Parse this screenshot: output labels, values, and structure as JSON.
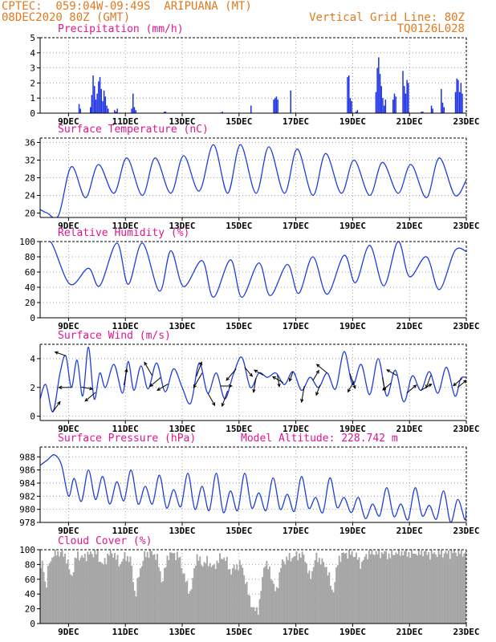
{
  "header": {
    "line1": "CPTEC:  059:04W-09:49S  ARIPUANA (MT)",
    "line2_left": "08DEC2020 80Z (GMT)",
    "line2_right": "Vertical Grid Line: 80Z",
    "line3_right": "TQ0126L028"
  },
  "colors": {
    "header": "#e07a1f",
    "title": "#e0168c",
    "series": "#1f3fd9",
    "bars": "#1a2fe6",
    "cloud": "#a6a6a6",
    "wind_arrow": "#000000"
  },
  "chart_data": [
    {
      "type": "bar",
      "title": "Precipitation (mm/h)",
      "x_ticks": [
        "9DEC",
        "11DEC",
        "13DEC",
        "15DEC",
        "17DEC",
        "19DEC",
        "21DEC",
        "23DEC"
      ],
      "ylim": [
        0,
        5
      ],
      "y_ticks": [
        0,
        1,
        2,
        3,
        4,
        5
      ],
      "events": [
        {
          "day": 9.35,
          "values": [
            0.6,
            0.3
          ]
        },
        {
          "day": 9.75,
          "values": [
            0.4,
            1.2,
            2.5,
            1.8,
            0.9,
            1.3,
            2.1,
            2.4,
            1.6,
            0.8,
            1.5,
            1.1,
            0.5,
            0.3
          ]
        },
        {
          "day": 10.6,
          "values": [
            0.2,
            0.1,
            0.3
          ]
        },
        {
          "day": 11.2,
          "values": [
            0.3,
            1.3,
            0.4,
            0.2
          ]
        },
        {
          "day": 12.35,
          "values": [
            0.1,
            0.1
          ]
        },
        {
          "day": 14.35,
          "values": [
            0.05,
            0.1
          ]
        },
        {
          "day": 15.4,
          "values": [
            0.5
          ]
        },
        {
          "day": 16.2,
          "values": [
            0.9,
            1.0,
            1.1,
            0.9
          ]
        },
        {
          "day": 16.8,
          "values": [
            1.5
          ]
        },
        {
          "day": 18.8,
          "values": [
            2.4,
            2.5,
            1.0,
            0.8
          ]
        },
        {
          "day": 19.1,
          "values": [
            0.1,
            0.2
          ]
        },
        {
          "day": 19.8,
          "values": [
            1.4,
            3.0,
            3.7,
            2.6,
            1.8,
            1.0,
            0.5,
            0.9
          ]
        },
        {
          "day": 20.4,
          "values": [
            0.9,
            1.3,
            1.1
          ]
        },
        {
          "day": 20.75,
          "values": [
            2.8,
            1.8,
            1.3,
            2.2,
            2.0
          ]
        },
        {
          "day": 21.4,
          "values": [
            0.1,
            0.1
          ]
        },
        {
          "day": 21.75,
          "values": [
            0.5,
            0.3
          ]
        },
        {
          "day": 22.1,
          "values": [
            1.6,
            0.7,
            0.4
          ]
        },
        {
          "day": 22.6,
          "values": [
            1.4,
            2.3,
            2.2,
            1.4,
            2.0,
            1.3
          ]
        }
      ]
    },
    {
      "type": "line",
      "title": "Surface Temperature (nC)",
      "x_ticks": [
        "9DEC",
        "11DEC",
        "13DEC",
        "15DEC",
        "17DEC",
        "19DEC",
        "21DEC",
        "23DEC"
      ],
      "ylim": [
        19,
        37
      ],
      "y_ticks": [
        20,
        24,
        28,
        32,
        36
      ],
      "x": [
        8.0,
        8.25,
        8.65,
        9.1,
        9.6,
        10.05,
        10.6,
        11.05,
        11.6,
        12.05,
        12.6,
        13.05,
        13.6,
        14.1,
        14.6,
        15.05,
        15.6,
        16.05,
        16.6,
        17.05,
        17.6,
        18.05,
        18.6,
        19.05,
        19.6,
        20.05,
        20.6,
        21.05,
        21.6,
        22.05,
        22.6,
        23.0
      ],
      "values": [
        20.8,
        20.0,
        19.5,
        30.5,
        23.5,
        31.0,
        24.5,
        32.5,
        24.0,
        32.5,
        24.5,
        33.0,
        25.0,
        35.5,
        24.5,
        35.5,
        24.5,
        35.0,
        24.5,
        34.5,
        24.0,
        33.5,
        24.5,
        32.0,
        24.0,
        31.5,
        24.5,
        31.0,
        23.5,
        32.5,
        24.0,
        27.5
      ]
    },
    {
      "type": "line",
      "title": "Relative Humidity (%)",
      "x_ticks": [
        "9DEC",
        "11DEC",
        "13DEC",
        "15DEC",
        "17DEC",
        "19DEC",
        "21DEC",
        "23DEC"
      ],
      "ylim": [
        0,
        100
      ],
      "y_ticks": [
        0,
        20,
        40,
        60,
        80,
        100
      ],
      "x": [
        8.0,
        8.4,
        9.05,
        9.7,
        10.1,
        10.7,
        11.1,
        11.6,
        12.2,
        12.6,
        13.05,
        13.7,
        14.1,
        14.7,
        15.1,
        15.7,
        16.1,
        16.7,
        17.1,
        17.6,
        18.1,
        18.7,
        19.1,
        19.6,
        20.1,
        20.6,
        21.0,
        21.6,
        22.05,
        22.6,
        23.0
      ],
      "values": [
        100,
        98,
        44,
        65,
        42,
        98,
        44,
        98,
        35,
        88,
        41,
        75,
        27,
        76,
        27,
        72,
        29,
        70,
        32,
        80,
        31,
        82,
        46,
        95,
        42,
        100,
        54,
        80,
        37,
        88,
        87
      ]
    },
    {
      "type": "line",
      "title": "Surface Wind (m/s)",
      "x_ticks": [
        "9DEC",
        "11DEC",
        "13DEC",
        "15DEC",
        "17DEC",
        "19DEC",
        "21DEC",
        "23DEC"
      ],
      "ylim": [
        -0.3,
        5.0
      ],
      "y_ticks": [
        0,
        2,
        4
      ],
      "x": [
        8.0,
        8.2,
        8.45,
        8.7,
        8.9,
        9.1,
        9.3,
        9.5,
        9.7,
        9.9,
        10.1,
        10.3,
        10.6,
        10.9,
        11.1,
        11.3,
        11.55,
        11.8,
        12.1,
        12.4,
        12.7,
        13.0,
        13.3,
        13.6,
        13.9,
        14.2,
        14.5,
        14.8,
        15.1,
        15.4,
        15.7,
        16.0,
        16.3,
        16.6,
        16.9,
        17.2,
        17.5,
        17.8,
        18.1,
        18.4,
        18.7,
        19.0,
        19.3,
        19.6,
        19.9,
        20.2,
        20.5,
        20.8,
        21.1,
        21.4,
        21.7,
        22.0,
        22.3,
        22.6,
        22.8,
        23.0
      ],
      "values": [
        1.2,
        2.2,
        0.3,
        3.0,
        4.2,
        2.0,
        3.9,
        1.4,
        4.8,
        1.2,
        3.0,
        2.0,
        3.6,
        1.6,
        3.8,
        1.8,
        3.5,
        1.9,
        3.7,
        1.7,
        3.3,
        2.0,
        0.9,
        3.7,
        1.6,
        3.0,
        1.2,
        2.9,
        4.1,
        2.0,
        3.0,
        2.7,
        3.0,
        2.2,
        3.1,
        1.8,
        2.7,
        2.0,
        3.0,
        1.9,
        4.5,
        2.2,
        3.6,
        1.5,
        4.0,
        1.4,
        3.2,
        1.0,
        2.8,
        1.8,
        3.1,
        1.6,
        3.4,
        1.4,
        2.6,
        2.7
      ],
      "wind_arrows": [
        {
          "day": 8.45,
          "speed": 2.2,
          "dir": 35
        },
        {
          "day": 8.9,
          "speed": 2.0,
          "dir": 290
        },
        {
          "day": 9.1,
          "speed": 2.2,
          "dir": 270
        },
        {
          "day": 9.45,
          "speed": 2.0,
          "dir": 100
        },
        {
          "day": 9.95,
          "speed": 2.4,
          "dir": 230
        },
        {
          "day": 10.95,
          "speed": 2.9,
          "dir": 10
        },
        {
          "day": 11.95,
          "speed": 2.8,
          "dir": 330
        },
        {
          "day": 12.25,
          "speed": 2.5,
          "dir": 230
        },
        {
          "day": 12.5,
          "speed": 2.2,
          "dir": 240
        },
        {
          "day": 13.5,
          "speed": 2.7,
          "dir": 20
        },
        {
          "day": 13.7,
          "speed": 3.0,
          "dir": 210
        },
        {
          "day": 13.9,
          "speed": 2.5,
          "dir": 150
        },
        {
          "day": 14.35,
          "speed": 2.0,
          "dir": 90
        },
        {
          "day": 14.6,
          "speed": 2.9,
          "dir": 200
        },
        {
          "day": 14.9,
          "speed": 2.7,
          "dir": 220
        },
        {
          "day": 15.2,
          "speed": 2.1,
          "dir": 140
        },
        {
          "day": 15.6,
          "speed": 2.6,
          "dir": 190
        },
        {
          "day": 15.85,
          "speed": 1.8,
          "dir": 300
        },
        {
          "day": 16.35,
          "speed": 2.1,
          "dir": 170
        },
        {
          "day": 16.55,
          "speed": 2.1,
          "dir": 300
        },
        {
          "day": 16.9,
          "speed": 1.8,
          "dir": 200
        },
        {
          "day": 17.3,
          "speed": 2.9,
          "dir": 190
        },
        {
          "day": 17.6,
          "speed": 2.1,
          "dir": 30
        },
        {
          "day": 17.85,
          "speed": 1.9,
          "dir": 200
        },
        {
          "day": 18.1,
          "speed": 2.4,
          "dir": 310
        },
        {
          "day": 18.9,
          "speed": 2.8,
          "dir": 160
        },
        {
          "day": 19.05,
          "speed": 2.2,
          "dir": 210
        },
        {
          "day": 20.05,
          "speed": 2.4,
          "dir": 170
        },
        {
          "day": 20.35,
          "speed": 1.9,
          "dir": 230
        },
        {
          "day": 20.55,
          "speed": 2.0,
          "dir": 300
        },
        {
          "day": 20.9,
          "speed": 2.2,
          "dir": 50
        },
        {
          "day": 21.4,
          "speed": 2.2,
          "dir": 60
        },
        {
          "day": 21.75,
          "speed": 2.4,
          "dir": 200
        },
        {
          "day": 22.7,
          "speed": 2.0,
          "dir": 50
        },
        {
          "day": 22.85,
          "speed": 2.0,
          "dir": 230
        }
      ]
    },
    {
      "type": "line",
      "title": "Surface Pressure (hPa)",
      "subtitle": "Model Altitude: 228.742 m",
      "x_ticks": [
        "9DEC",
        "11DEC",
        "13DEC",
        "15DEC",
        "17DEC",
        "19DEC",
        "21DEC",
        "23DEC"
      ],
      "ylim": [
        978,
        989.5
      ],
      "y_ticks": [
        978,
        980,
        982,
        984,
        986,
        988
      ],
      "x": [
        8.0,
        8.25,
        8.5,
        8.75,
        9.0,
        9.2,
        9.45,
        9.7,
        9.95,
        10.2,
        10.45,
        10.7,
        10.95,
        11.2,
        11.45,
        11.7,
        11.95,
        12.2,
        12.45,
        12.7,
        12.95,
        13.2,
        13.45,
        13.7,
        13.95,
        14.2,
        14.45,
        14.7,
        14.95,
        15.2,
        15.45,
        15.7,
        15.95,
        16.2,
        16.45,
        16.7,
        16.95,
        17.2,
        17.45,
        17.7,
        17.95,
        18.2,
        18.45,
        18.7,
        18.95,
        19.2,
        19.45,
        19.7,
        19.95,
        20.2,
        20.45,
        20.7,
        20.95,
        21.2,
        21.45,
        21.7,
        21.95,
        22.2,
        22.45,
        22.7,
        22.95,
        23.0
      ],
      "values": [
        986.7,
        987.5,
        988.3,
        986.8,
        982.0,
        984.7,
        981.2,
        986.0,
        981.5,
        985.0,
        980.8,
        984.2,
        981.3,
        986.0,
        980.8,
        983.5,
        980.8,
        985.2,
        980.2,
        983.0,
        980.4,
        985.5,
        980.0,
        983.5,
        979.8,
        985.5,
        979.5,
        982.8,
        979.8,
        985.5,
        980.2,
        982.5,
        979.8,
        984.8,
        980.0,
        982.3,
        979.7,
        985.0,
        980.2,
        981.8,
        979.5,
        984.8,
        980.3,
        981.8,
        979.5,
        981.8,
        978.6,
        980.8,
        979.0,
        983.3,
        978.9,
        980.8,
        978.4,
        983.3,
        979.0,
        980.6,
        978.5,
        982.8,
        978.0,
        981.5,
        978.4,
        980.2
      ]
    },
    {
      "type": "bar",
      "title": "Cloud Cover (%)",
      "x_ticks": [
        "9DEC",
        "11DEC",
        "13DEC",
        "15DEC",
        "17DEC",
        "19DEC",
        "21DEC",
        "23DEC"
      ],
      "ylim": [
        0,
        100
      ],
      "y_ticks": [
        0,
        20,
        40,
        60,
        80,
        100
      ],
      "cover_keys": {
        "day": [
          8.0,
          8.1,
          8.2,
          8.3,
          8.5,
          8.7,
          8.9,
          9.1,
          9.3,
          9.45,
          9.6,
          9.8,
          10.0,
          10.2,
          10.4,
          10.6,
          10.8,
          11.0,
          11.2,
          11.35,
          11.5,
          11.7,
          11.9,
          12.1,
          12.3,
          12.5,
          12.7,
          12.9,
          13.1,
          13.3,
          13.5,
          13.7,
          13.9,
          14.1,
          14.3,
          14.5,
          14.7,
          14.9,
          15.1,
          15.3,
          15.5,
          15.7,
          15.9,
          16.1,
          16.3,
          16.5,
          16.7,
          16.9,
          17.1,
          17.3,
          17.5,
          17.7,
          17.9,
          18.1,
          18.3,
          18.5,
          18.7,
          18.9,
          19.1,
          19.3,
          19.5,
          19.7,
          19.9,
          20.1,
          20.3,
          20.5,
          20.7,
          20.9,
          21.1,
          21.3,
          21.5,
          21.7,
          21.9,
          22.1,
          22.3,
          22.5,
          22.7,
          22.9,
          23.0
        ],
        "value": [
          68,
          85,
          45,
          80,
          96,
          96,
          92,
          62,
          95,
          88,
          92,
          95,
          96,
          78,
          94,
          95,
          80,
          92,
          85,
          35,
          72,
          94,
          96,
          92,
          55,
          93,
          95,
          90,
          60,
          40,
          92,
          80,
          85,
          75,
          88,
          90,
          70,
          78,
          80,
          45,
          18,
          20,
          85,
          70,
          40,
          82,
          88,
          90,
          93,
          92,
          60,
          90,
          85,
          75,
          40,
          88,
          95,
          95,
          93,
          80,
          94,
          97,
          95,
          96,
          92,
          96,
          97,
          95,
          95,
          96,
          97,
          94,
          95,
          96,
          95,
          96,
          97,
          96,
          96
        ]
      }
    }
  ]
}
